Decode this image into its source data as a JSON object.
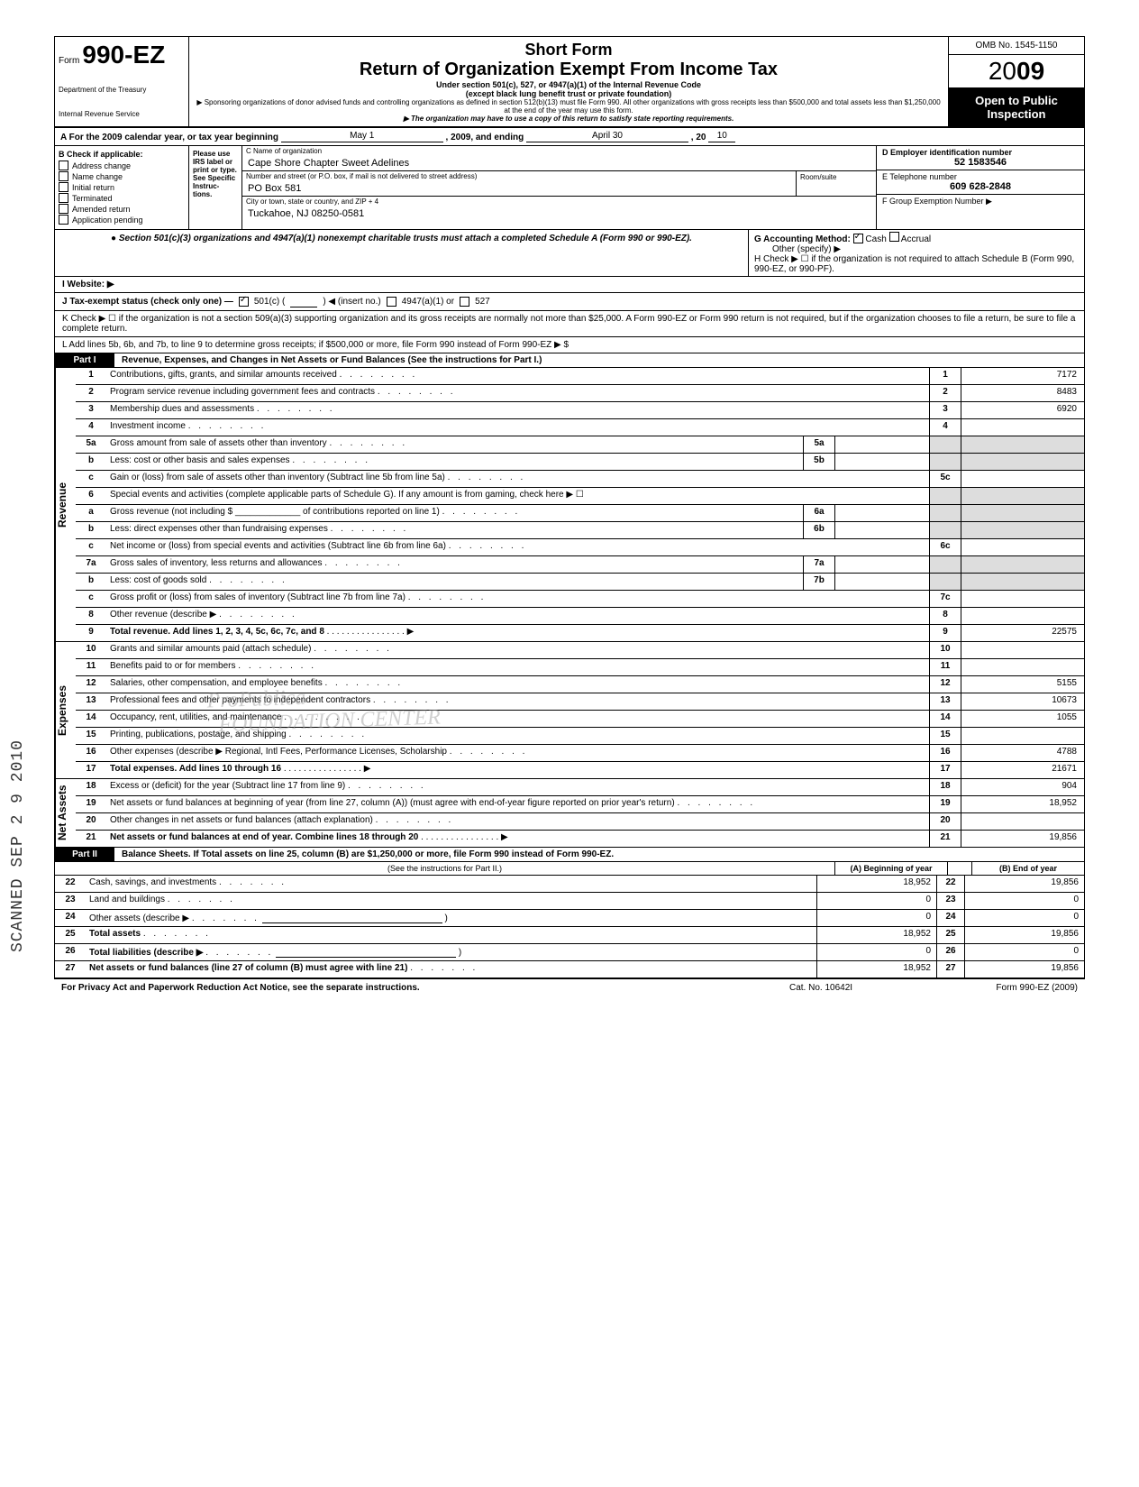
{
  "header": {
    "form_prefix": "Form",
    "form_number": "990-EZ",
    "dept1": "Department of the Treasury",
    "dept2": "Internal Revenue Service",
    "short_form": "Short Form",
    "title": "Return of Organization Exempt From Income Tax",
    "subtitle": "Under section 501(c), 527, or 4947(a)(1) of the Internal Revenue Code",
    "subtitle2": "(except black lung benefit trust or private foundation)",
    "fine1": "▶ Sponsoring organizations of donor advised funds and controlling organizations as defined in section 512(b)(13) must file Form 990. All other organizations with gross receipts less than $500,000 and total assets less than $1,250,000 at the end of the year may use this form.",
    "fine2": "▶ The organization may have to use a copy of this return to satisfy state reporting requirements.",
    "omb": "OMB No. 1545-1150",
    "year_prefix": "20",
    "year_suffix": "09",
    "open": "Open to Public Inspection"
  },
  "rowA": {
    "text_a": "A  For the 2009 calendar year, or tax year beginning",
    "begin": "May 1",
    "mid": ", 2009, and ending",
    "end": "April 30",
    "tail": ", 20",
    "yr": "10"
  },
  "colB": {
    "hdr": "B  Check if applicable:",
    "items": [
      "Address change",
      "Name change",
      "Initial return",
      "Terminated",
      "Amended return",
      "Application pending"
    ],
    "instr": "Please use IRS label or print or type. See Specific Instruc-tions."
  },
  "colC": {
    "c_label": "C  Name of organization",
    "c_val": "Cape Shore Chapter Sweet Adelines",
    "addr_label": "Number and street (or P.O. box, if mail is not delivered to street address)",
    "room_label": "Room/suite",
    "addr_val": "PO Box 581",
    "city_label": "City or town, state or country, and ZIP + 4",
    "city_val": "Tuckahoe, NJ 08250-0581"
  },
  "colD": {
    "d_label": "D Employer identification number",
    "d_val": "52 1583546",
    "e_label": "E Telephone number",
    "e_val": "609 628-2848",
    "f_label": "F Group Exemption Number ▶"
  },
  "sect501": {
    "left": "● Section 501(c)(3) organizations and 4947(a)(1) nonexempt charitable trusts must attach a completed Schedule A (Form 990 or 990-EZ).",
    "g": "G  Accounting Method:",
    "g_cash": "Cash",
    "g_accrual": "Accrual",
    "g_other": "Other (specify) ▶",
    "h": "H  Check ▶ ☐ if the organization is not required to attach Schedule B (Form 990, 990-EZ, or 990-PF)."
  },
  "lineI": "I   Website: ▶",
  "lineJ": {
    "label": "J  Tax-exempt status (check only one) —",
    "c501": "501(c) (",
    "insert": ") ◀ (insert no.)",
    "a4947": "4947(a)(1) or",
    "c527": "527"
  },
  "lineK": "K  Check ▶   ☐   if the organization is not a section 509(a)(3) supporting organization and its gross receipts are normally not more than $25,000.  A Form 990-EZ or Form 990 return is not required, but if the organization chooses to file a return, be sure to file a complete return.",
  "lineL": "L  Add lines 5b, 6b, and 7b, to line 9 to determine gross receipts; if $500,000 or more, file Form 990 instead of Form 990-EZ      ▶    $",
  "part1": {
    "label": "Part I",
    "title": "Revenue, Expenses, and Changes in Net Assets or Fund Balances (See the instructions for Part I.)"
  },
  "revenue_tab": "Revenue",
  "expenses_tab": "Expenses",
  "netassets_tab": "Net Assets",
  "lines": [
    {
      "n": "1",
      "t": "Contributions, gifts, grants, and similar amounts received",
      "box": "1",
      "v": "7172"
    },
    {
      "n": "2",
      "t": "Program service revenue including government fees and contracts",
      "box": "2",
      "v": "8483"
    },
    {
      "n": "3",
      "t": "Membership dues and assessments",
      "box": "3",
      "v": "6920"
    },
    {
      "n": "4",
      "t": "Investment income",
      "box": "4",
      "v": ""
    },
    {
      "n": "5a",
      "t": "Gross amount from sale of assets other than inventory",
      "ibox": "5a"
    },
    {
      "n": "b",
      "t": "Less: cost or other basis and sales expenses",
      "ibox": "5b"
    },
    {
      "n": "c",
      "t": "Gain or (loss) from sale of assets other than inventory (Subtract line 5b from line 5a)",
      "box": "5c",
      "v": ""
    },
    {
      "n": "6",
      "t": "Special events and activities (complete applicable parts of Schedule G). If any amount is from gaming, check here ▶ ☐"
    },
    {
      "n": "a",
      "t": "Gross revenue (not including $ _____________ of contributions reported on line 1)",
      "ibox": "6a"
    },
    {
      "n": "b",
      "t": "Less: direct expenses other than fundraising expenses",
      "ibox": "6b"
    },
    {
      "n": "c",
      "t": "Net income or (loss) from special events and activities (Subtract line 6b from line 6a)",
      "box": "6c",
      "v": ""
    },
    {
      "n": "7a",
      "t": "Gross sales of inventory, less returns and allowances",
      "ibox": "7a"
    },
    {
      "n": "b",
      "t": "Less: cost of goods sold",
      "ibox": "7b"
    },
    {
      "n": "c",
      "t": "Gross profit or (loss) from sales of inventory (Subtract line 7b from line 7a)",
      "box": "7c",
      "v": ""
    },
    {
      "n": "8",
      "t": "Other revenue (describe ▶",
      "box": "8",
      "v": ""
    },
    {
      "n": "9",
      "t": "Total revenue. Add lines 1, 2, 3, 4, 5c, 6c, 7c, and 8",
      "box": "9",
      "v": "22575",
      "arrow": true
    }
  ],
  "exp_lines": [
    {
      "n": "10",
      "t": "Grants and similar amounts paid (attach schedule)",
      "box": "10",
      "v": ""
    },
    {
      "n": "11",
      "t": "Benefits paid to or for members",
      "box": "11",
      "v": ""
    },
    {
      "n": "12",
      "t": "Salaries, other compensation, and employee benefits",
      "box": "12",
      "v": "5155"
    },
    {
      "n": "13",
      "t": "Professional fees and other payments to independent contractors",
      "box": "13",
      "v": "10673"
    },
    {
      "n": "14",
      "t": "Occupancy, rent, utilities, and maintenance",
      "box": "14",
      "v": "1055"
    },
    {
      "n": "15",
      "t": "Printing, publications, postage, and shipping",
      "box": "15",
      "v": ""
    },
    {
      "n": "16",
      "t": "Other expenses (describe ▶   Regional, Intl Fees, Performance Licenses, Scholarship",
      "box": "16",
      "v": "4788"
    },
    {
      "n": "17",
      "t": "Total expenses. Add lines 10 through 16",
      "box": "17",
      "v": "21671",
      "arrow": true
    }
  ],
  "na_lines": [
    {
      "n": "18",
      "t": "Excess or (deficit) for the year (Subtract line 17 from line 9)",
      "box": "18",
      "v": "904"
    },
    {
      "n": "19",
      "t": "Net assets or fund balances at beginning of year (from line 27, column (A)) (must agree with end-of-year figure reported on prior year's return)",
      "box": "19",
      "v": "18,952"
    },
    {
      "n": "20",
      "t": "Other changes in net assets or fund balances (attach explanation)",
      "box": "20",
      "v": ""
    },
    {
      "n": "21",
      "t": "Net assets or fund balances at end of year. Combine lines 18 through 20",
      "box": "21",
      "v": "19,856",
      "arrow": true
    }
  ],
  "part2": {
    "label": "Part II",
    "title": "Balance Sheets. If Total assets on line 25, column (B) are $1,250,000 or more, file Form 990 instead of Form 990-EZ.",
    "instr": "(See the instructions for Part II.)",
    "colA": "(A) Beginning of year",
    "colB": "(B) End of year"
  },
  "bal_lines": [
    {
      "n": "22",
      "t": "Cash, savings, and investments",
      "a": "18,952",
      "bn": "22",
      "b": "19,856"
    },
    {
      "n": "23",
      "t": "Land and buildings",
      "a": "0",
      "bn": "23",
      "b": "0"
    },
    {
      "n": "24",
      "t": "Other assets (describe ▶",
      "a": "0",
      "bn": "24",
      "b": "0"
    },
    {
      "n": "25",
      "t": "Total assets",
      "a": "18,952",
      "bn": "25",
      "b": "19,856"
    },
    {
      "n": "26",
      "t": "Total liabilities (describe ▶",
      "a": "0",
      "bn": "26",
      "b": "0"
    },
    {
      "n": "27",
      "t": "Net assets or fund balances (line 27 of column (B) must agree with line 21)",
      "a": "18,952",
      "bn": "27",
      "b": "19,856"
    }
  ],
  "footer": {
    "left": "For Privacy Act and Paperwork Reduction Act Notice, see the separate instructions.",
    "mid": "Cat. No. 10642I",
    "right": "Form 990-EZ (2009)"
  },
  "side_stamp": "SCANNED SEP 2 9 2010",
  "watermark": "ProPublica\n  FOUNDATION CENTER"
}
